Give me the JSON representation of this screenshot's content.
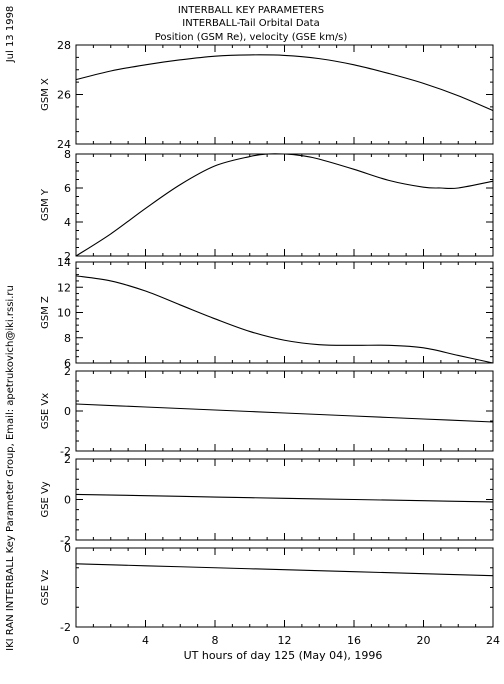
{
  "header": {
    "title_lines": [
      "INTERBALL KEY PARAMETERS",
      "INTERBALL-Tail Orbital Data",
      "Position (GSM Re), velocity (GSE km/s)"
    ],
    "date": "Jul 13 1998",
    "credit": "IKI RAN INTERBALL Key Parameter Group, Email: apetrukovich@iki.rssi.ru"
  },
  "chart_data": {
    "type": "line",
    "xlabel": "UT hours of day 125 (May 04), 1996",
    "xlim": [
      0,
      24
    ],
    "xticks": [
      0,
      4,
      8,
      12,
      16,
      20,
      24
    ],
    "panels": [
      {
        "id": "gsm-x",
        "ylabel": "GSM X",
        "ylim": [
          24,
          28
        ],
        "yticks": [
          24,
          26,
          28
        ],
        "series": [
          {
            "x": [
              0,
              2,
              4,
              6,
              8,
              10,
              12,
              14,
              16,
              18,
              20,
              22,
              24
            ],
            "y": [
              26.6,
              26.95,
              27.2,
              27.4,
              27.55,
              27.6,
              27.58,
              27.45,
              27.2,
              26.85,
              26.45,
              25.95,
              25.35
            ]
          }
        ]
      },
      {
        "id": "gsm-y",
        "ylabel": "GSM Y",
        "ylim": [
          2,
          8
        ],
        "yticks": [
          2,
          4,
          6,
          8
        ],
        "series": [
          {
            "x": [
              0,
              2,
              4,
              6,
              8,
              10,
              11,
              12,
              13,
              14,
              16,
              18,
              20,
              21,
              22,
              24
            ],
            "y": [
              2.0,
              3.3,
              4.8,
              6.2,
              7.3,
              7.85,
              8.0,
              8.0,
              7.9,
              7.7,
              7.1,
              6.45,
              6.05,
              6.0,
              6.0,
              6.4
            ]
          }
        ]
      },
      {
        "id": "gsm-z",
        "ylabel": "GSM Z",
        "ylim": [
          6,
          14
        ],
        "yticks": [
          6,
          8,
          10,
          12,
          14
        ],
        "series": [
          {
            "x": [
              0,
              2,
              4,
              6,
              8,
              10,
              12,
              14,
              16,
              18,
              20,
              22,
              24
            ],
            "y": [
              12.9,
              12.5,
              11.7,
              10.6,
              9.5,
              8.5,
              7.8,
              7.45,
              7.4,
              7.4,
              7.2,
              6.6,
              6.0
            ]
          }
        ]
      },
      {
        "id": "gse-vx",
        "ylabel": "GSE Vx",
        "ylim": [
          -2,
          2
        ],
        "yticks": [
          -2,
          0,
          2
        ],
        "series": [
          {
            "x": [
              0,
              4,
              8,
              12,
              16,
              20,
              24
            ],
            "y": [
              0.35,
              0.2,
              0.05,
              -0.1,
              -0.25,
              -0.4,
              -0.55
            ]
          }
        ]
      },
      {
        "id": "gse-vy",
        "ylabel": "GSE Vy",
        "ylim": [
          -2,
          2
        ],
        "yticks": [
          -2,
          0,
          2
        ],
        "series": [
          {
            "x": [
              0,
              4,
              8,
              12,
              16,
              20,
              24
            ],
            "y": [
              0.25,
              0.19,
              0.12,
              0.06,
              0.0,
              -0.06,
              -0.12
            ]
          }
        ]
      },
      {
        "id": "gse-vz",
        "ylabel": "GSE Vz",
        "ylim": [
          -2,
          0
        ],
        "yticks": [
          -2,
          0
        ],
        "series": [
          {
            "x": [
              0,
              4,
              8,
              12,
              16,
              20,
              24
            ],
            "y": [
              -0.4,
              -0.45,
              -0.5,
              -0.55,
              -0.6,
              -0.65,
              -0.7
            ]
          }
        ]
      }
    ]
  }
}
